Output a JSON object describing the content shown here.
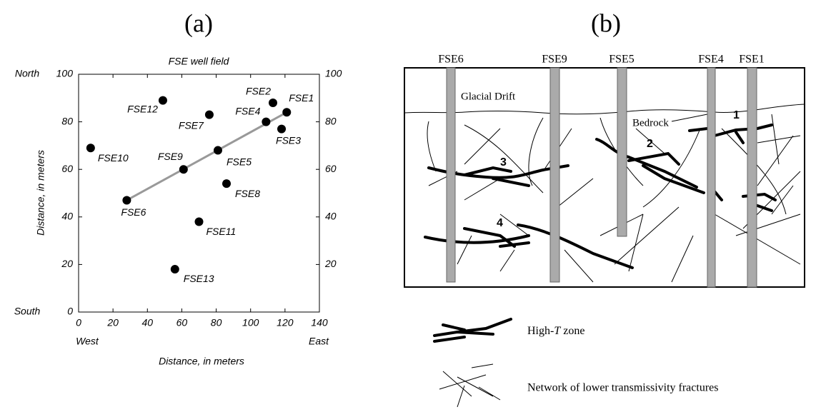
{
  "chart_data": {
    "type": "scatter",
    "panel": "(a)",
    "title": "FSE well field",
    "xlabel": "Distance, in meters",
    "ylabel": "Distance, in meters",
    "north": "North",
    "south": "South",
    "west": "West",
    "east": "East",
    "point_labels": [
      "FSE1",
      "FSE2",
      "FSE3",
      "FSE4",
      "FSE5",
      "FSE6",
      "FSE7",
      "FSE8",
      "FSE9",
      "FSE10",
      "FSE11",
      "FSE12",
      "FSE13"
    ],
    "x": [
      121,
      113,
      118,
      109,
      81,
      28,
      76,
      86,
      61,
      7,
      70,
      49,
      56
    ],
    "values": [
      84,
      88,
      77,
      80,
      68,
      47,
      83,
      54,
      60,
      69,
      38,
      89,
      18
    ],
    "color": "#000000",
    "fit_line": {
      "x": [
        28,
        121
      ],
      "values": [
        47,
        84
      ],
      "color": "#999999"
    },
    "xlim": [
      0,
      140
    ],
    "ylim": [
      0,
      100
    ],
    "xticks": [
      0,
      20,
      40,
      60,
      80,
      100,
      120,
      140
    ],
    "yticks": [
      0,
      20,
      40,
      60,
      80,
      100
    ]
  },
  "diagram": {
    "panel": "(b)",
    "wells": [
      "FSE6",
      "FSE9",
      "FSE5",
      "FSE4",
      "FSE1"
    ],
    "layers": [
      "Glacial Drift",
      "Bedrock"
    ],
    "zones": [
      "1",
      "2",
      "3",
      "4"
    ],
    "legend": {
      "high_t": {
        "prefix": "High-",
        "italic": "T",
        "suffix": " zone"
      },
      "network": "Network of lower transmissivity fractures"
    }
  }
}
